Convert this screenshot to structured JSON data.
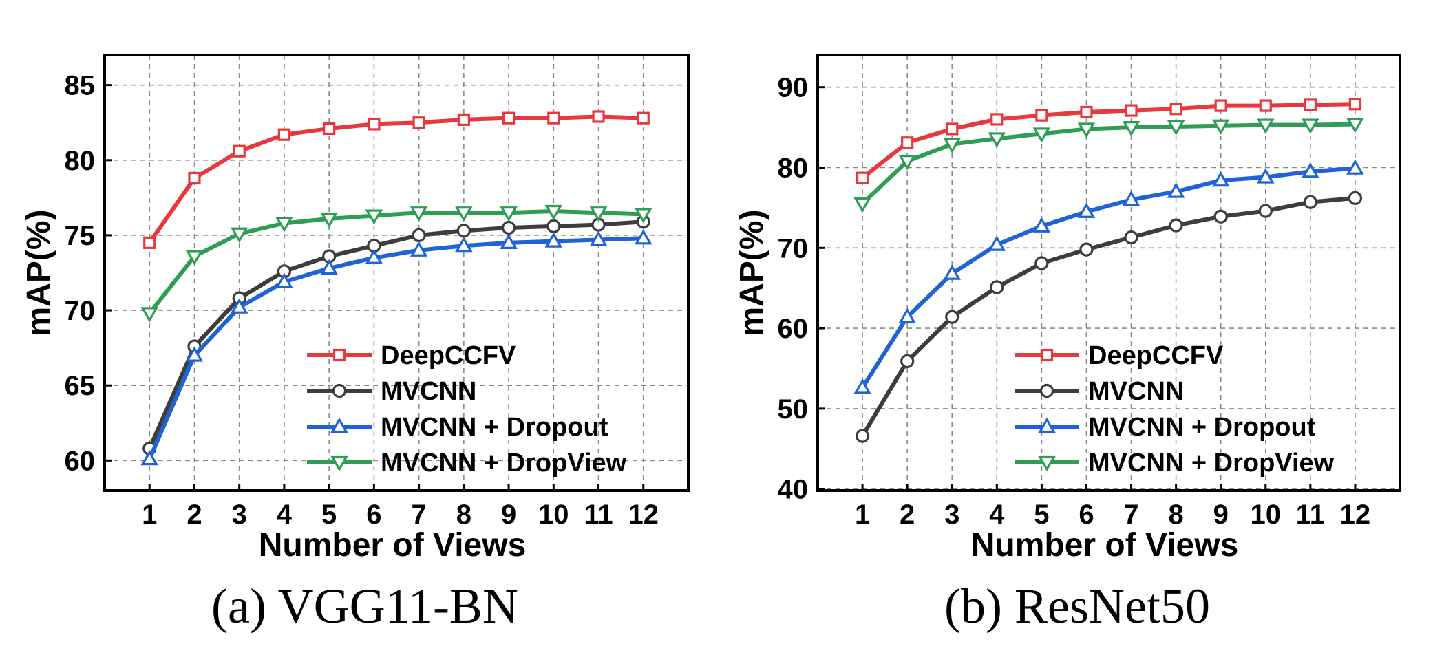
{
  "chart_data": [
    {
      "type": "line",
      "caption": "(a) VGG11-BN",
      "xlabel": "Number of Views",
      "ylabel": "mAP(%)",
      "x": [
        1,
        2,
        3,
        4,
        5,
        6,
        7,
        8,
        9,
        10,
        11,
        12
      ],
      "xlim": [
        0,
        13
      ],
      "ylim": [
        58,
        87
      ],
      "yticks": [
        60,
        65,
        70,
        75,
        80,
        85
      ],
      "grid": true,
      "legend": "bottom-right",
      "series": [
        {
          "name": "DeepCCFV",
          "color": "#e8383d",
          "marker": "square",
          "values": [
            74.5,
            78.8,
            80.6,
            81.7,
            82.1,
            82.4,
            82.5,
            82.7,
            82.8,
            82.8,
            82.9,
            82.8
          ]
        },
        {
          "name": "MVCNN",
          "color": "#3d3d3d",
          "marker": "circle",
          "values": [
            60.8,
            67.6,
            70.8,
            72.6,
            73.6,
            74.3,
            75.0,
            75.3,
            75.5,
            75.6,
            75.7,
            75.9
          ]
        },
        {
          "name": "MVCNN + Dropout",
          "color": "#1f63d6",
          "marker": "triangle-up",
          "values": [
            60.1,
            67.0,
            70.2,
            71.9,
            72.8,
            73.5,
            74.0,
            74.3,
            74.5,
            74.6,
            74.7,
            74.8
          ]
        },
        {
          "name": "MVCNN + DropView",
          "color": "#2e9e55",
          "marker": "triangle-down",
          "values": [
            69.8,
            73.6,
            75.1,
            75.8,
            76.1,
            76.3,
            76.5,
            76.5,
            76.5,
            76.6,
            76.5,
            76.4
          ]
        }
      ]
    },
    {
      "type": "line",
      "caption": "(b) ResNet50",
      "xlabel": "Number of Views",
      "ylabel": "mAP(%)",
      "x": [
        1,
        2,
        3,
        4,
        5,
        6,
        7,
        8,
        9,
        10,
        11,
        12
      ],
      "xlim": [
        0,
        13
      ],
      "ylim": [
        39.8,
        94
      ],
      "yticks": [
        40,
        50,
        60,
        70,
        80,
        90
      ],
      "grid": true,
      "legend": "bottom-right",
      "series": [
        {
          "name": "DeepCCFV",
          "color": "#e8383d",
          "marker": "square",
          "values": [
            78.7,
            83.1,
            84.8,
            86.0,
            86.5,
            86.9,
            87.1,
            87.3,
            87.7,
            87.7,
            87.8,
            87.9
          ]
        },
        {
          "name": "MVCNN",
          "color": "#3d3d3d",
          "marker": "circle",
          "values": [
            46.6,
            55.9,
            61.4,
            65.1,
            68.1,
            69.8,
            71.3,
            72.8,
            73.9,
            74.6,
            75.7,
            76.2
          ]
        },
        {
          "name": "MVCNN + Dropout",
          "color": "#1f63d6",
          "marker": "triangle-up",
          "values": [
            52.6,
            61.4,
            66.8,
            70.4,
            72.7,
            74.5,
            76.0,
            77.0,
            78.4,
            78.8,
            79.5,
            79.9
          ]
        },
        {
          "name": "MVCNN + DropView",
          "color": "#2e9e55",
          "marker": "triangle-down",
          "values": [
            75.5,
            80.8,
            82.9,
            83.6,
            84.2,
            84.8,
            85.0,
            85.1,
            85.2,
            85.3,
            85.3,
            85.4
          ]
        }
      ]
    }
  ]
}
